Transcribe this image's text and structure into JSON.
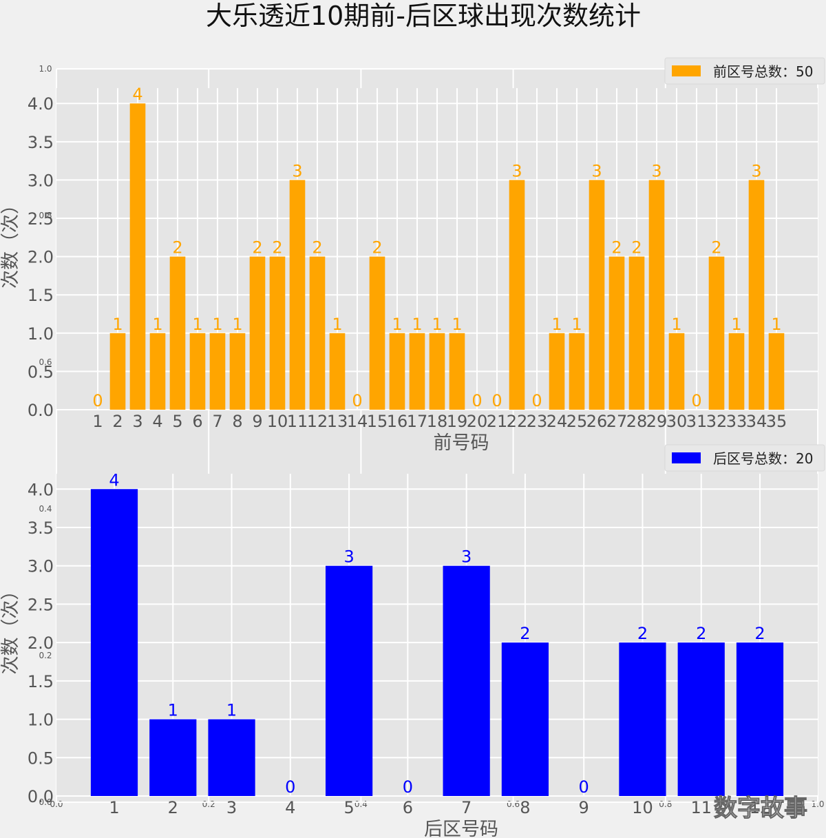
{
  "title": "大乐透近10期前-后区球出现次数统计",
  "watermark": "数字故事",
  "chart_data": [
    {
      "type": "bar",
      "xlabel": "前号码",
      "ylabel": "次数（次）",
      "ylim": [
        0,
        4.2
      ],
      "yticks": [
        "0.0",
        "0.5",
        "1.0",
        "1.5",
        "2.0",
        "2.5",
        "3.0",
        "3.5",
        "4.0"
      ],
      "color": "#FFA500",
      "legend": "前区号总数：50",
      "legend_position": "top-right",
      "grid": true,
      "categories": [
        "1",
        "2",
        "3",
        "4",
        "5",
        "6",
        "7",
        "8",
        "9",
        "10",
        "11",
        "12",
        "13",
        "14",
        "15",
        "16",
        "17",
        "18",
        "19",
        "20",
        "21",
        "22",
        "23",
        "24",
        "25",
        "26",
        "27",
        "28",
        "29",
        "30",
        "31",
        "32",
        "33",
        "34",
        "35"
      ],
      "values": [
        0,
        1,
        4,
        1,
        2,
        1,
        1,
        1,
        2,
        2,
        3,
        2,
        1,
        0,
        2,
        1,
        1,
        1,
        1,
        0,
        0,
        3,
        0,
        1,
        1,
        3,
        2,
        2,
        3,
        1,
        0,
        2,
        1,
        3,
        1
      ]
    },
    {
      "type": "bar",
      "xlabel": "后区号码",
      "ylabel": "次数（次）",
      "ylim": [
        0,
        4.2
      ],
      "yticks": [
        "0.0",
        "0.5",
        "1.0",
        "1.5",
        "2.0",
        "2.5",
        "3.0",
        "3.5",
        "4.0"
      ],
      "color": "#0000FF",
      "legend": "后区号总数：20",
      "legend_position": "top-right",
      "grid": true,
      "categories": [
        "1",
        "2",
        "3",
        "4",
        "5",
        "6",
        "7",
        "8",
        "9",
        "10",
        "11",
        "12"
      ],
      "values": [
        4,
        1,
        1,
        0,
        3,
        0,
        3,
        2,
        0,
        2,
        2,
        2
      ]
    }
  ],
  "background_axis": {
    "yticks": [
      "0.0",
      "0.2",
      "0.4",
      "0.6",
      "0.8",
      "1.0"
    ],
    "xticks": [
      "0.0",
      "0.2",
      "0.4",
      "0.6",
      "0.8",
      "1.0"
    ]
  }
}
